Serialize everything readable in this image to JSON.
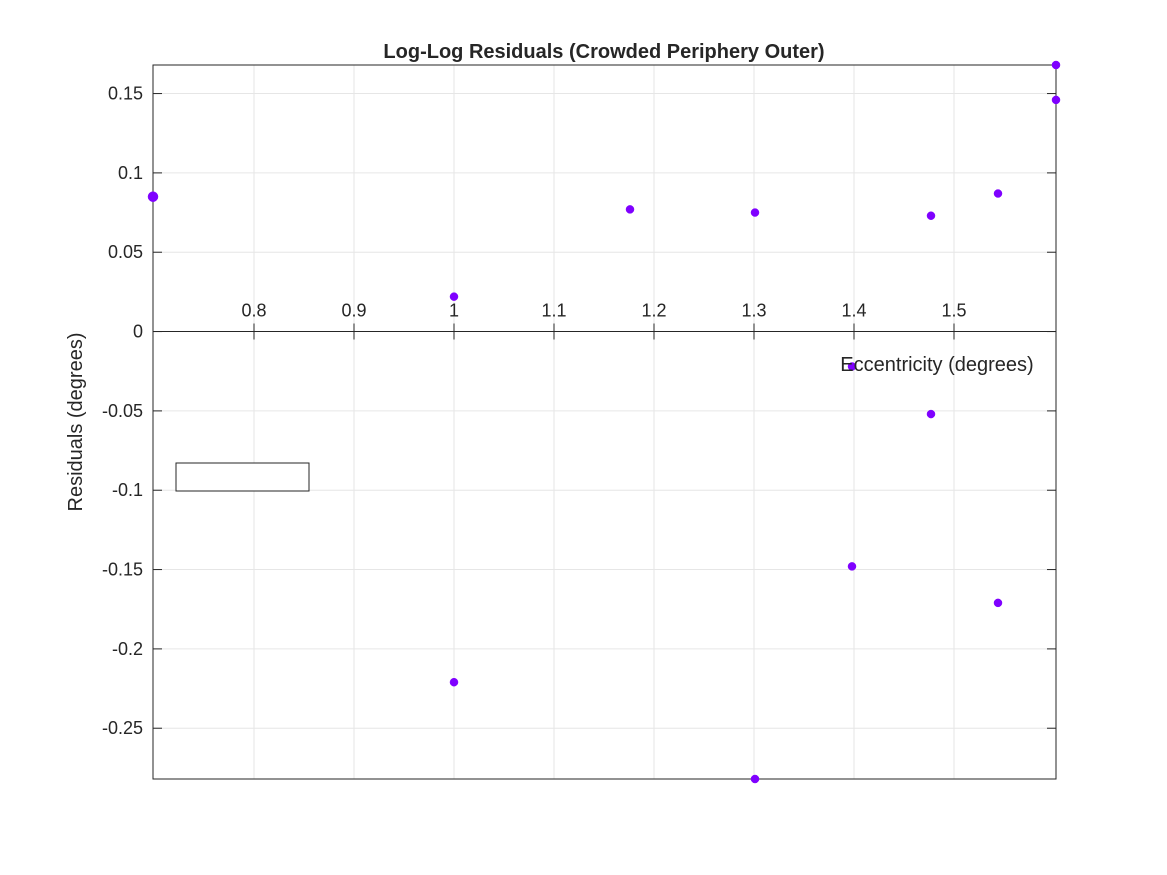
{
  "chart_data": {
    "type": "scatter",
    "title": "Log-Log Residuals (Crowded Periphery Outer)",
    "xlabel": "Eccentricity (degrees)",
    "ylabel": "Residuals (degrees)",
    "xlim": [
      0.699,
      1.602
    ],
    "ylim": [
      -0.282,
      0.168
    ],
    "x_axis_position": "origin",
    "xticks": [
      0.8,
      0.9,
      1,
      1.1,
      1.2,
      1.3,
      1.4,
      1.5
    ],
    "xtick_labels": [
      "0.8",
      "0.9",
      "1",
      "1.1",
      "1.2",
      "1.3",
      "1.4",
      "1.5"
    ],
    "yticks": [
      0.15,
      0.1,
      0.05,
      0,
      -0.05,
      -0.1,
      -0.15,
      -0.2,
      -0.25
    ],
    "ytick_labels": [
      "0.15",
      "0.1",
      "0.05",
      "0",
      "-0.05",
      "-0.1",
      "-0.15",
      "-0.2",
      "-0.25"
    ],
    "grid": true,
    "legend": {
      "placement": "west",
      "entries": []
    },
    "series": [
      {
        "marker_color": "#7f00ff",
        "points": [
          {
            "x": 0.699,
            "y": 0.085
          },
          {
            "x": 1.0,
            "y": 0.022
          },
          {
            "x": 1.0,
            "y": -0.221
          },
          {
            "x": 1.176,
            "y": 0.077
          },
          {
            "x": 1.301,
            "y": 0.075
          },
          {
            "x": 1.301,
            "y": -0.282
          },
          {
            "x": 1.398,
            "y": -0.022
          },
          {
            "x": 1.398,
            "y": -0.148
          },
          {
            "x": 1.477,
            "y": 0.073
          },
          {
            "x": 1.477,
            "y": -0.052
          },
          {
            "x": 1.544,
            "y": 0.087
          },
          {
            "x": 1.544,
            "y": -0.171
          },
          {
            "x": 1.602,
            "y": 0.168
          },
          {
            "x": 1.602,
            "y": 0.146
          }
        ]
      }
    ]
  }
}
